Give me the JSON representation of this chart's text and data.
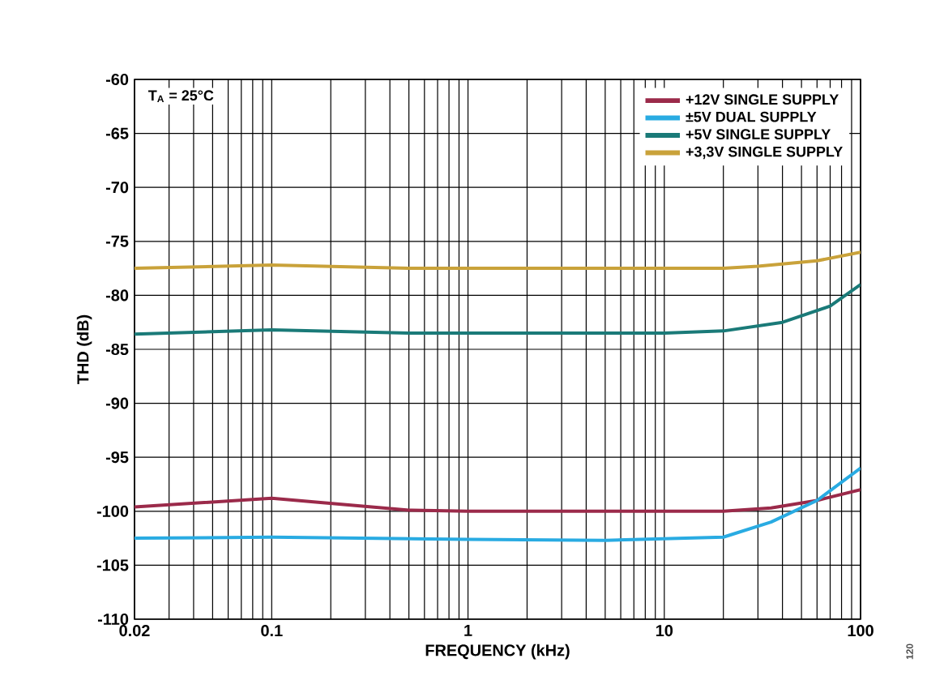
{
  "chart_data": {
    "type": "line",
    "xlabel": "FREQUENCY (kHz)",
    "ylabel": "THD (dB)",
    "log": "x",
    "xlim": [
      0.02,
      100
    ],
    "ylim": [
      -110,
      -60
    ],
    "xticks": [
      0.02,
      0.1,
      1,
      10,
      100
    ],
    "yticks": [
      -110,
      -105,
      -100,
      -95,
      -90,
      -85,
      -80,
      -75,
      -70,
      -65,
      -60
    ],
    "grid": true,
    "legend": "top right",
    "annotations": [
      "T$_{A}$ = 25°C",
      "120"
    ],
    "series": [
      {
        "name": "+12V SINGLE SUPPLY",
        "color": "#9b2a4a",
        "x": [
          0.02,
          0.1,
          0.5,
          1,
          5,
          20,
          35,
          60,
          100
        ],
        "values": [
          -99.6,
          -98.8,
          -99.9,
          -100,
          -100,
          -100,
          -99.7,
          -99,
          -98
        ]
      },
      {
        "name": "±5V DUAL SUPPLY",
        "color": "#29abe2",
        "x": [
          0.02,
          0.1,
          1,
          5,
          20,
          35,
          60,
          100
        ],
        "values": [
          -102.5,
          -102.4,
          -102.6,
          -102.7,
          -102.4,
          -101,
          -99,
          -96
        ]
      },
      {
        "name": "+5V SINGLE SUPPLY",
        "color": "#1a7a78",
        "x": [
          0.02,
          0.1,
          0.5,
          10,
          20,
          40,
          70,
          100
        ],
        "values": [
          -83.6,
          -83.2,
          -83.5,
          -83.5,
          -83.3,
          -82.5,
          -81,
          -79
        ]
      },
      {
        "name": "+3,3V SINGLE SUPPLY",
        "color": "#c9a23a",
        "x": [
          0.02,
          0.1,
          0.5,
          20,
          30,
          60,
          100
        ],
        "values": [
          -77.5,
          -77.2,
          -77.5,
          -77.5,
          -77.3,
          -76.8,
          -76
        ]
      }
    ]
  }
}
